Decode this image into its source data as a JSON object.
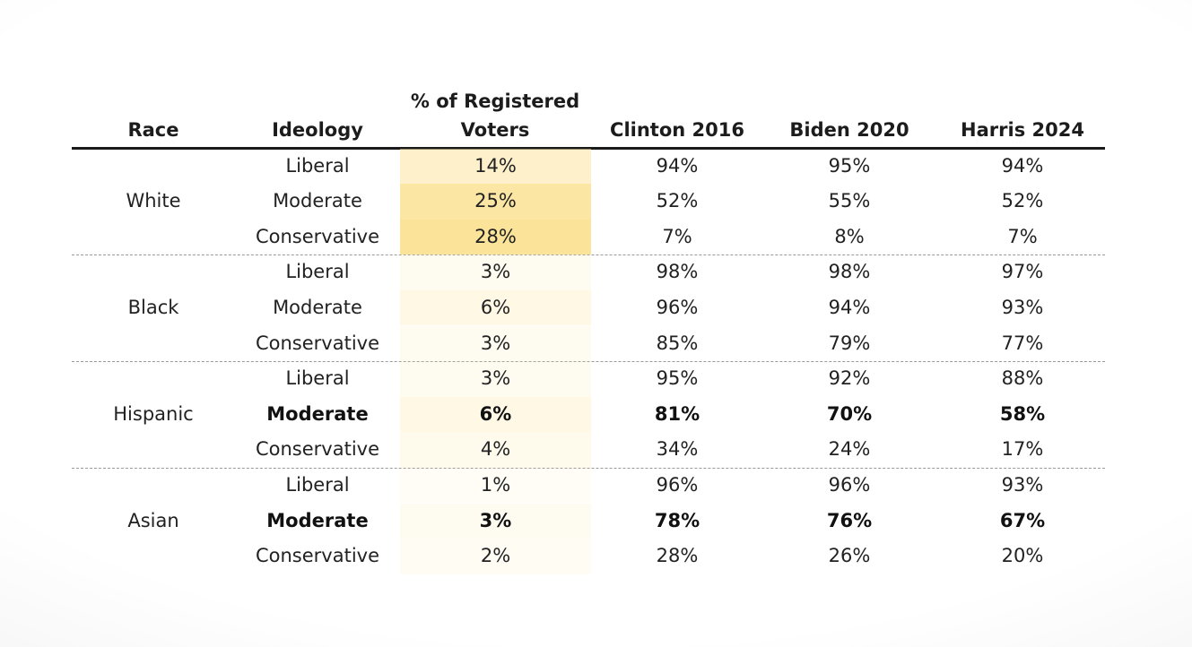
{
  "table": {
    "headers": {
      "race": "Race",
      "ideology": "Ideology",
      "share_line1": "% of Registered",
      "share_line2": "Voters",
      "clinton": "Clinton 2016",
      "biden": "Biden 2020",
      "harris": "Harris 2024"
    },
    "groups": [
      {
        "race": "White",
        "rows": [
          {
            "ideology": "Liberal",
            "share": "14%",
            "clinton": "94%",
            "biden": "95%",
            "harris": "94%",
            "bold": false
          },
          {
            "ideology": "Moderate",
            "share": "25%",
            "clinton": "52%",
            "biden": "55%",
            "harris": "52%",
            "bold": false
          },
          {
            "ideology": "Conservative",
            "share": "28%",
            "clinton": "7%",
            "biden": "8%",
            "harris": "7%",
            "bold": false
          }
        ]
      },
      {
        "race": "Black",
        "rows": [
          {
            "ideology": "Liberal",
            "share": "3%",
            "clinton": "98%",
            "biden": "98%",
            "harris": "97%",
            "bold": false
          },
          {
            "ideology": "Moderate",
            "share": "6%",
            "clinton": "96%",
            "biden": "94%",
            "harris": "93%",
            "bold": false
          },
          {
            "ideology": "Conservative",
            "share": "3%",
            "clinton": "85%",
            "biden": "79%",
            "harris": "77%",
            "bold": false
          }
        ]
      },
      {
        "race": "Hispanic",
        "rows": [
          {
            "ideology": "Liberal",
            "share": "3%",
            "clinton": "95%",
            "biden": "92%",
            "harris": "88%",
            "bold": false
          },
          {
            "ideology": "Moderate",
            "share": "6%",
            "clinton": "81%",
            "biden": "70%",
            "harris": "58%",
            "bold": true
          },
          {
            "ideology": "Conservative",
            "share": "4%",
            "clinton": "34%",
            "biden": "24%",
            "harris": "17%",
            "bold": false
          }
        ]
      },
      {
        "race": "Asian",
        "rows": [
          {
            "ideology": "Liberal",
            "share": "1%",
            "clinton": "96%",
            "biden": "96%",
            "harris": "93%",
            "bold": false
          },
          {
            "ideology": "Moderate",
            "share": "3%",
            "clinton": "78%",
            "biden": "76%",
            "harris": "67%",
            "bold": true
          },
          {
            "ideology": "Conservative",
            "share": "2%",
            "clinton": "28%",
            "biden": "26%",
            "harris": "20%",
            "bold": false
          }
        ]
      }
    ],
    "heatmap_color": "#fbe39a"
  },
  "chart_data": {
    "type": "table",
    "columns": [
      "Race",
      "Ideology",
      "% of Registered Voters",
      "Clinton 2016",
      "Biden 2020",
      "Harris 2024"
    ],
    "rows": [
      [
        "White",
        "Liberal",
        14,
        94,
        95,
        94
      ],
      [
        "White",
        "Moderate",
        25,
        52,
        55,
        52
      ],
      [
        "White",
        "Conservative",
        28,
        7,
        8,
        7
      ],
      [
        "Black",
        "Liberal",
        3,
        98,
        98,
        97
      ],
      [
        "Black",
        "Moderate",
        6,
        96,
        94,
        93
      ],
      [
        "Black",
        "Conservative",
        3,
        85,
        79,
        77
      ],
      [
        "Hispanic",
        "Liberal",
        3,
        95,
        92,
        88
      ],
      [
        "Hispanic",
        "Moderate",
        6,
        81,
        70,
        58
      ],
      [
        "Hispanic",
        "Conservative",
        4,
        34,
        24,
        17
      ],
      [
        "Asian",
        "Liberal",
        1,
        96,
        96,
        93
      ],
      [
        "Asian",
        "Moderate",
        3,
        78,
        76,
        67
      ],
      [
        "Asian",
        "Conservative",
        2,
        28,
        26,
        20
      ]
    ],
    "units": "%",
    "highlighted_rows": [
      [
        "Hispanic",
        "Moderate"
      ],
      [
        "Asian",
        "Moderate"
      ]
    ]
  }
}
